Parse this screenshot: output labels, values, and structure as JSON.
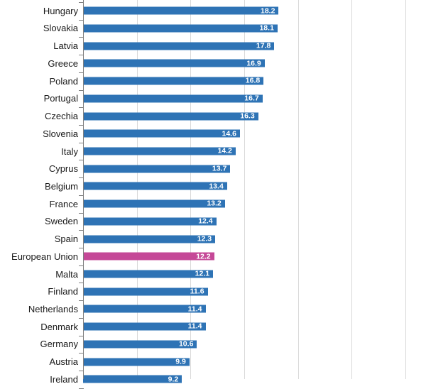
{
  "chart_data": {
    "type": "bar",
    "orientation": "horizontal",
    "title": "",
    "xlabel": "",
    "ylabel": "",
    "categories": [
      "Hungary",
      "Slovakia",
      "Latvia",
      "Greece",
      "Poland",
      "Portugal",
      "Czechia",
      "Slovenia",
      "Italy",
      "Cyprus",
      "Belgium",
      "France",
      "Sweden",
      "Spain",
      "European Union",
      "Malta",
      "Finland",
      "Netherlands",
      "Denmark",
      "Germany",
      "Austria",
      "Ireland"
    ],
    "values": [
      18.2,
      18.1,
      17.8,
      16.9,
      16.8,
      16.7,
      16.3,
      14.6,
      14.2,
      13.7,
      13.4,
      13.2,
      12.4,
      12.3,
      12.2,
      12.1,
      11.6,
      11.4,
      11.4,
      10.6,
      9.9,
      9.2
    ],
    "highlighted_category": "European Union",
    "data_labels": "inside_end",
    "data_label_format": "one_decimal",
    "xlim": [
      0,
      30
    ],
    "gridline_interval": 5,
    "grid": true,
    "legend": "none",
    "axis_tick_labels_visible": false,
    "bottom_row_partially_cropped": true,
    "colors": {
      "bar": "#2E73B5",
      "highlight": "#C54897",
      "gridline": "#D9D9D9",
      "axis": "#7F7F7F",
      "category_text": "#1a1a1a",
      "value_text": "#FFFFFF",
      "background": "#FFFFFF"
    }
  }
}
